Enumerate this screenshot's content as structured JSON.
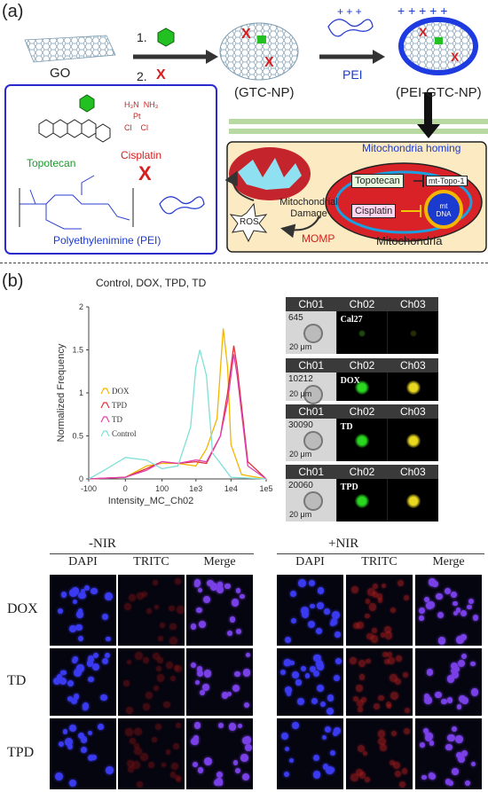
{
  "panel_a": {
    "letter": "(a)",
    "go_label": "GO",
    "step1": "1.",
    "step2": "2.",
    "x_mark": "X",
    "gtc_label": "(GTC-NP)",
    "pei_label": "PEI",
    "pei_gtc_label": "(PEI-GTC-NP)",
    "mito_homing": "Mitochondria homing",
    "legend": {
      "topotecan": "Topotecan",
      "cisplatin": "Cisplatin",
      "pei": "Polyethylenimine (PEI)",
      "pt_formula": [
        "H₃N",
        "NH₃",
        "Pt",
        "Cl",
        "Cl"
      ]
    },
    "cell": {
      "mito_damage": "Mitochondrial Damage",
      "ros": "ROS",
      "momp": "MOMP",
      "mitochondria": "Mitochondria",
      "topotecan_box": "Topotecan",
      "cisplatin_box": "Cisplatin",
      "mt_topo": "mt-Topo-1",
      "mt_dna": "mt DNA"
    }
  },
  "panel_b": {
    "letter": "(b)",
    "chart_title": "Control, DOX, TPD, TD",
    "imaging": {
      "channels": [
        "Ch01",
        "Ch02",
        "Ch03"
      ],
      "tiles": [
        {
          "num": "645",
          "tag": "Cal27",
          "scale": "20 μm"
        },
        {
          "num": "10212",
          "tag": "DOX",
          "scale": "20 μm"
        },
        {
          "num": "30090",
          "tag": "TD",
          "scale": "20 μm"
        },
        {
          "num": "20060",
          "tag": "TPD",
          "scale": "20 μm"
        }
      ]
    }
  },
  "chart_data": {
    "type": "line",
    "title": "Control, DOX, TPD, TD",
    "xlabel": "Intensity_MC_Ch02",
    "ylabel": "Normalized Frequency",
    "x_scale": "log (biexponential)",
    "x_ticks": [
      "-100",
      "0",
      "100",
      "1e3",
      "1e4",
      "1e5"
    ],
    "y_ticks": [
      "0",
      "0.5",
      "1",
      "1.5",
      "2"
    ],
    "ylim": [
      0,
      2
    ],
    "legend_position": "upper-left",
    "series": [
      {
        "name": "DOX",
        "color": "#f2b600",
        "x": [
          -100,
          0,
          30,
          100,
          300,
          1000,
          2000,
          4000,
          6000,
          8000,
          10000,
          20000,
          100000
        ],
        "y": [
          0,
          0.02,
          0.15,
          0.18,
          0.18,
          0.15,
          0.35,
          0.7,
          1.75,
          1.3,
          0.4,
          0.05,
          0
        ]
      },
      {
        "name": "TPD",
        "color": "#e0303a",
        "x": [
          -100,
          0,
          30,
          100,
          300,
          1000,
          2000,
          5000,
          8000,
          12000,
          15000,
          30000,
          100000
        ],
        "y": [
          0,
          0.02,
          0.12,
          0.2,
          0.18,
          0.2,
          0.18,
          0.5,
          1.0,
          1.55,
          1.3,
          0.2,
          0
        ]
      },
      {
        "name": "TD",
        "color": "#e040b0",
        "x": [
          -100,
          0,
          30,
          100,
          300,
          1000,
          2000,
          5000,
          8000,
          12000,
          15000,
          30000,
          100000
        ],
        "y": [
          0,
          0.02,
          0.1,
          0.2,
          0.18,
          0.22,
          0.2,
          0.5,
          0.9,
          1.45,
          1.2,
          0.15,
          0
        ]
      },
      {
        "name": "Control",
        "color": "#7fe0d8",
        "x": [
          -100,
          -30,
          0,
          30,
          100,
          300,
          700,
          1000,
          1300,
          2000,
          3000,
          10000,
          100000
        ],
        "y": [
          0,
          0.1,
          0.25,
          0.22,
          0.12,
          0.15,
          0.6,
          1.3,
          1.5,
          1.2,
          0.3,
          0.02,
          0
        ]
      }
    ]
  },
  "panel_c": {
    "group_minus": "-NIR",
    "group_plus": "+NIR",
    "columns": [
      "DAPI",
      "TRITC",
      "Merge",
      "DAPI",
      "TRITC",
      "Merge"
    ],
    "rows": [
      "DOX",
      "TD",
      "TPD"
    ]
  }
}
